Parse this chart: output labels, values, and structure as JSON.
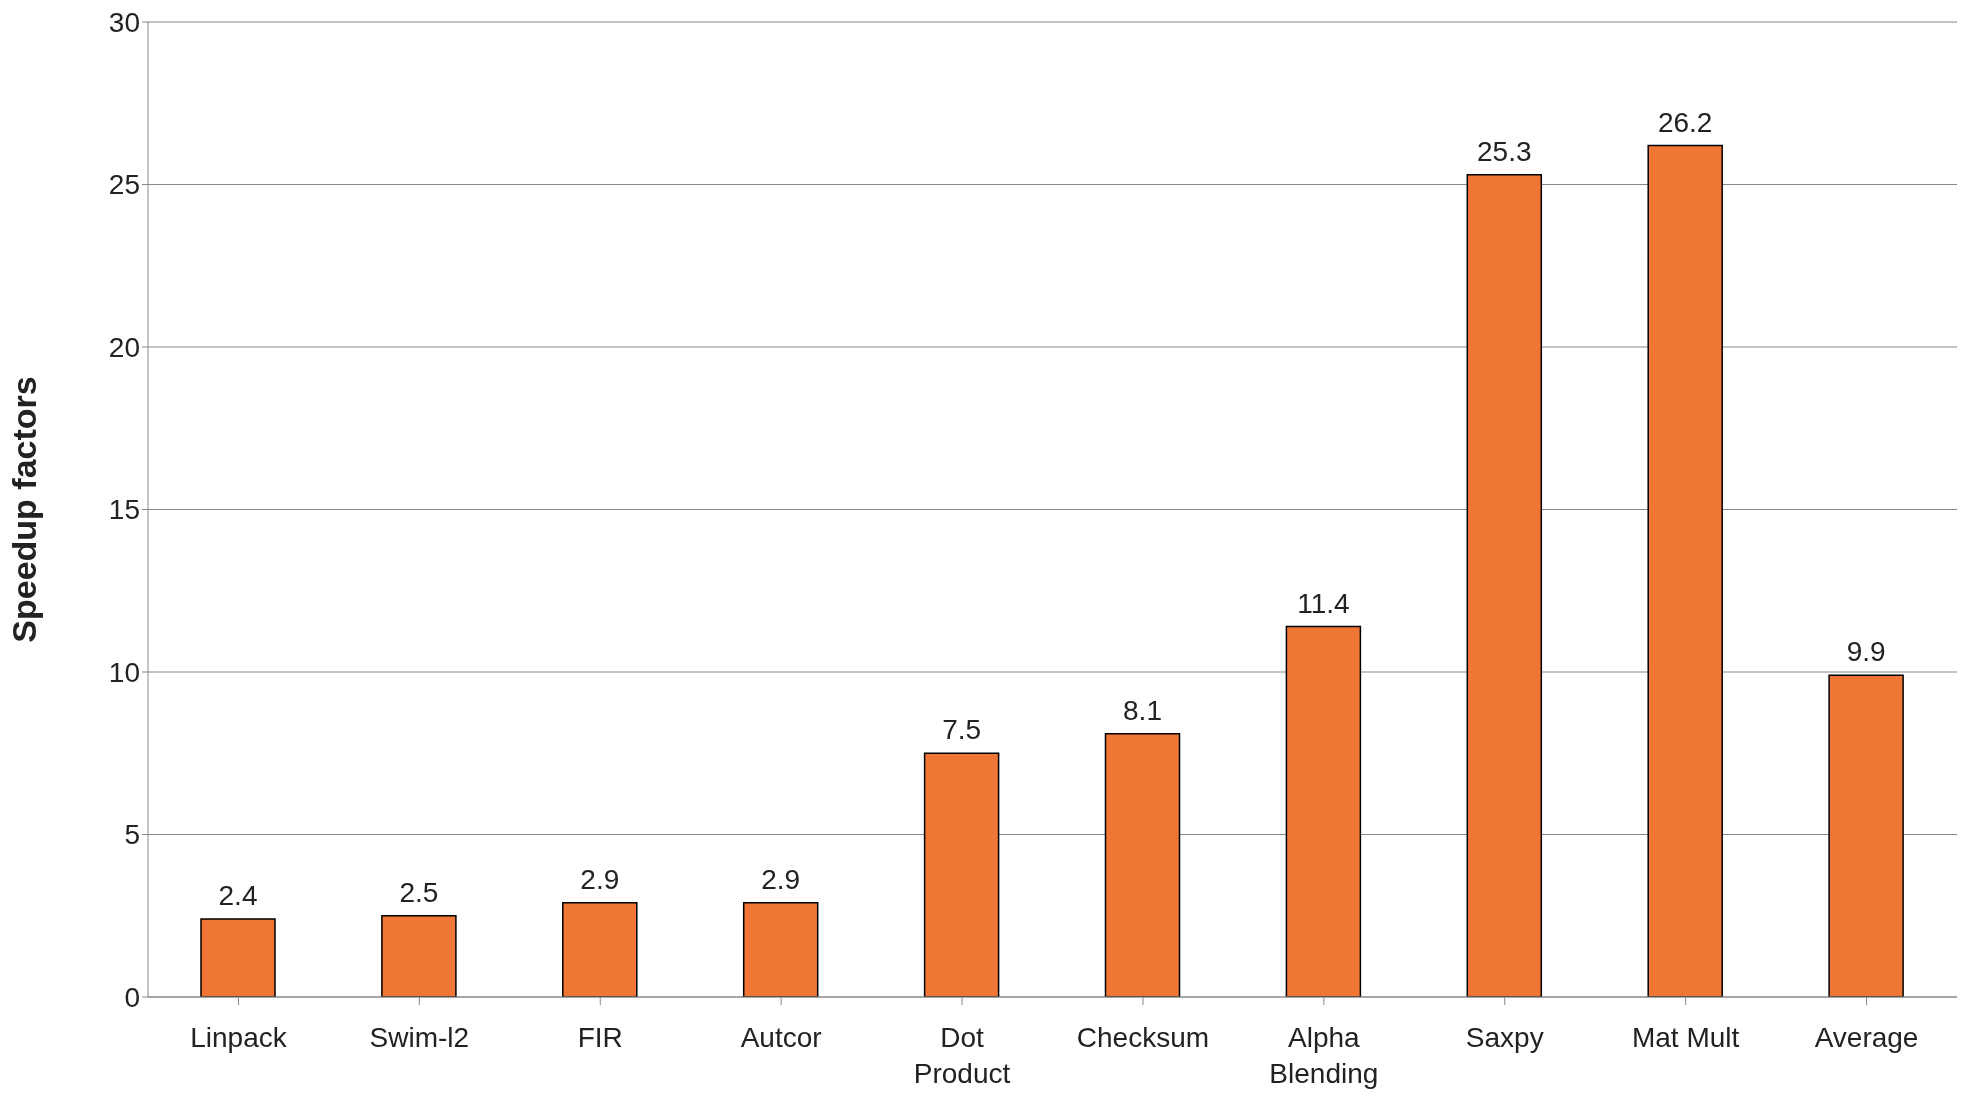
{
  "chart_data": {
    "type": "bar",
    "ylabel": "Speedup factors",
    "categories": [
      "Linpack",
      "Swim-l2",
      "FIR",
      "Autcor",
      "Dot Product",
      "Checksum",
      "Alpha Blending",
      "Saxpy",
      "Mat Mult",
      "Average"
    ],
    "values": [
      2.4,
      2.5,
      2.9,
      2.9,
      7.5,
      8.1,
      11.4,
      25.3,
      26.2,
      9.9
    ],
    "color": "#f07636",
    "ylim": [
      0,
      30
    ],
    "yticks": [
      0,
      5,
      10,
      15,
      20,
      25,
      30
    ],
    "grid": "y",
    "data_labels": true
  }
}
